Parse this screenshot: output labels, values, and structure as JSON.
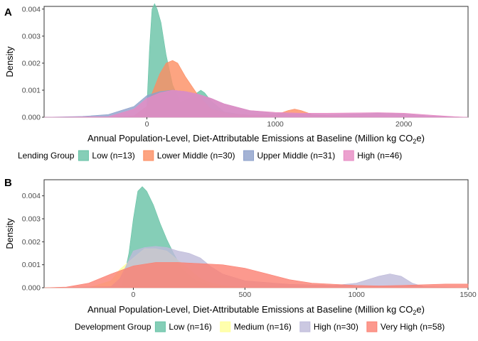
{
  "chart_data": [
    {
      "type": "area",
      "panel_label": "A",
      "xlabel": "Annual Population-Level, Diet-Attributable Emissions at Baseline (Million kg CO2e)",
      "xlabel_main": "Annual Population-Level, Diet-Attributable Emissions at Baseline (Million kg CO",
      "xlabel_sub": "2",
      "xlabel_end": "e)",
      "ylabel": "Density",
      "xlim": [
        -800,
        2500
      ],
      "ylim": [
        0,
        0.0041
      ],
      "xticks": [
        0,
        1000,
        2000
      ],
      "xtick_labels": [
        "0",
        "1000",
        "2000"
      ],
      "yticks": [
        0,
        0.001,
        0.002,
        0.003,
        0.004
      ],
      "ytick_labels": [
        "0.000",
        "0.001",
        "0.002",
        "0.003",
        "0.004"
      ],
      "grid": false,
      "legend_placement": "bottom",
      "legend_title": "Lending Group",
      "series": [
        {
          "name": "Low (n=13)",
          "color": "#66c2a5",
          "x": [
            -800,
            -100,
            -20,
            0,
            20,
            40,
            60,
            80,
            110,
            150,
            200,
            260,
            330,
            390,
            420,
            450,
            500,
            600,
            800,
            1000,
            1500,
            2000,
            2500
          ],
          "y": [
            0,
            0,
            5e-05,
            0.0004,
            0.0025,
            0.004,
            0.0042,
            0.004,
            0.0035,
            0.0023,
            0.0012,
            0.00055,
            0.0007,
            0.0009,
            0.001,
            0.0009,
            0.0006,
            0.0002,
            5e-05,
            2e-05,
            0,
            0,
            0
          ]
        },
        {
          "name": "Lower Middle (n=30)",
          "color": "#fc8d62",
          "x": [
            -800,
            -300,
            -100,
            0,
            50,
            100,
            150,
            200,
            240,
            300,
            400,
            500,
            650,
            800,
            1000,
            1100,
            1150,
            1200,
            1300,
            1500,
            2000,
            2500
          ],
          "y": [
            0,
            0,
            5e-05,
            0.0004,
            0.001,
            0.0016,
            0.002,
            0.0021,
            0.002,
            0.0015,
            0.0008,
            0.0003,
            0.00012,
            8e-05,
            8e-05,
            0.00025,
            0.0003,
            0.00025,
            8e-05,
            3e-05,
            0,
            0
          ]
        },
        {
          "name": "Upper Middle (n=31)",
          "color": "#8da0cb",
          "x": [
            -800,
            -500,
            -300,
            -100,
            0,
            100,
            200,
            300,
            400,
            500,
            600,
            800,
            1000,
            1200,
            1400,
            1600,
            1800,
            2000,
            2200,
            2400,
            2500
          ],
          "y": [
            0,
            3e-05,
            0.0001,
            0.0004,
            0.0008,
            0.00095,
            0.001,
            0.00095,
            0.00085,
            0.0007,
            0.0005,
            0.00025,
            0.00015,
            0.00012,
            0.0001,
            0.00012,
            0.00015,
            0.00012,
            5e-05,
            1e-05,
            0
          ]
        },
        {
          "name": "High (n=46)",
          "color": "#e78ac3",
          "x": [
            -800,
            -300,
            -100,
            0,
            100,
            200,
            300,
            400,
            500,
            600,
            800,
            1000,
            1200,
            1400,
            1600,
            1800,
            2000,
            2200,
            2400,
            2500
          ],
          "y": [
            0,
            2e-05,
            0.0003,
            0.0007,
            0.0009,
            0.001,
            0.00095,
            0.00085,
            0.0007,
            0.0005,
            0.00025,
            0.00018,
            0.00015,
            0.00015,
            0.00016,
            0.00017,
            0.00015,
            8e-05,
            2e-05,
            0
          ]
        }
      ]
    },
    {
      "type": "area",
      "panel_label": "B",
      "xlabel": "Annual Population-Level, Diet-Attributable Emissions at Baseline (Million kg CO2e)",
      "xlabel_main": "Annual Population-Level, Diet-Attributable Emissions at Baseline (Million kg CO",
      "xlabel_sub": "2",
      "xlabel_end": "e)",
      "ylabel": "Density",
      "xlim": [
        -400,
        1500
      ],
      "ylim": [
        0,
        0.0047
      ],
      "xticks": [
        0,
        500,
        1000,
        1500
      ],
      "xtick_labels": [
        "0",
        "500",
        "1000",
        "1500"
      ],
      "yticks": [
        0,
        0.001,
        0.002,
        0.003,
        0.004
      ],
      "ytick_labels": [
        "0.000",
        "0.001",
        "0.002",
        "0.003",
        "0.004"
      ],
      "grid": false,
      "legend_placement": "bottom",
      "legend_title": "Development Group",
      "series": [
        {
          "name": "Low (n=16)",
          "color": "#66c2a5",
          "x": [
            -400,
            -100,
            -50,
            -20,
            0,
            20,
            40,
            60,
            90,
            120,
            150,
            180,
            220,
            280,
            350,
            500,
            1500
          ],
          "y": [
            0,
            0,
            0.0001,
            0.0015,
            0.003,
            0.0042,
            0.0044,
            0.0042,
            0.0036,
            0.0028,
            0.0021,
            0.0015,
            0.0008,
            0.0003,
            0.0001,
            0,
            0
          ]
        },
        {
          "name": "Medium (n=16)",
          "color": "#ffff99",
          "x": [
            -400,
            -200,
            -100,
            -60,
            0,
            50,
            100,
            150,
            200,
            250,
            300,
            350,
            400,
            500,
            1500
          ],
          "y": [
            0,
            0,
            0.0003,
            0.0008,
            0.0013,
            0.0017,
            0.0017,
            0.0016,
            0.0012,
            0.0008,
            0.0004,
            0.0002,
            0.0001,
            0,
            0
          ]
        },
        {
          "name": "High (n=30)",
          "color": "#bebada",
          "x": [
            -400,
            -100,
            -60,
            -20,
            0,
            50,
            100,
            150,
            200,
            250,
            300,
            350,
            400,
            500,
            700,
            900,
            1000,
            1100,
            1150,
            1200,
            1250,
            1300,
            1400,
            1500
          ],
          "y": [
            0,
            5e-05,
            0.0004,
            0.0012,
            0.0016,
            0.00175,
            0.0018,
            0.00175,
            0.0016,
            0.0015,
            0.0013,
            0.0009,
            0.0006,
            0.0003,
            0.00015,
            0.0001,
            0.0002,
            0.0005,
            0.0006,
            0.0005,
            0.0002,
            5e-05,
            2e-05,
            0
          ]
        },
        {
          "name": "Very High (n=58)",
          "color": "#fb8072",
          "x": [
            -400,
            -300,
            -200,
            -100,
            0,
            100,
            200,
            300,
            400,
            500,
            600,
            700,
            800,
            900,
            1000,
            1100,
            1200,
            1300,
            1400,
            1500
          ],
          "y": [
            0,
            3e-05,
            0.0002,
            0.0006,
            0.00095,
            0.0011,
            0.0011,
            0.00105,
            0.001,
            0.00085,
            0.0006,
            0.00035,
            0.0002,
            0.00015,
            0.0001,
            8e-05,
            0.0001,
            0.00013,
            0.00016,
            0.00016
          ]
        }
      ]
    }
  ]
}
